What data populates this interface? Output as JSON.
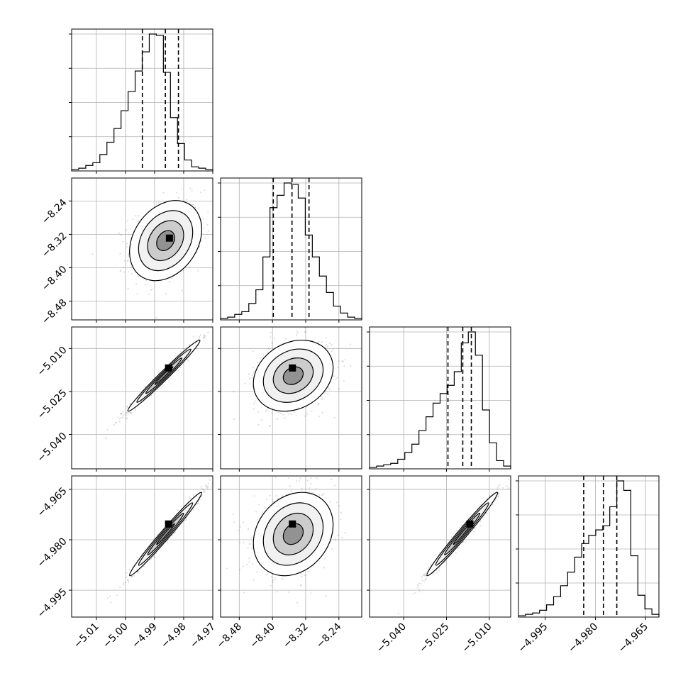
{
  "chart_data": {
    "type": "corner",
    "parameters": [
      {
        "range": [
          -5.0185,
          -4.97
        ],
        "ticks": [
          -5.01,
          -5.0,
          -4.99,
          -4.98,
          -4.97
        ],
        "tick_labels": [
          "−5.01",
          "−5.00",
          "−4.99",
          "−4.98",
          "−4.97"
        ],
        "quantiles": [
          -4.9942,
          -4.9863,
          -4.9818
        ],
        "hist_bins": [
          0.01,
          0.02,
          0.04,
          0.06,
          0.12,
          0.21,
          0.31,
          0.44,
          0.58,
          0.73,
          0.87,
          1.0,
          0.99,
          0.72,
          0.39,
          0.2,
          0.08,
          0.03,
          0.02,
          0.01
        ]
      },
      {
        "range": [
          -8.525,
          -8.185
        ],
        "ticks": [
          -8.48,
          -8.4,
          -8.32,
          -8.24
        ],
        "tick_labels": [
          "−8.48",
          "−8.40",
          "−8.32",
          "−8.24"
        ],
        "quantiles": [
          -8.398,
          -8.353,
          -8.312
        ],
        "hist_bins": [
          0.01,
          0.02,
          0.04,
          0.06,
          0.12,
          0.22,
          0.46,
          0.82,
          0.91,
          1.0,
          0.99,
          0.89,
          0.62,
          0.46,
          0.32,
          0.2,
          0.1,
          0.05,
          0.02,
          0.01
        ]
      },
      {
        "range": [
          -5.052,
          -5.0025
        ],
        "ticks": [
          -5.04,
          -5.025,
          -5.01
        ],
        "tick_labels": [
          "−5.040",
          "−5.025",
          "−5.010"
        ],
        "quantiles": [
          -5.0245,
          -5.0193,
          -5.0163
        ],
        "hist_bins": [
          0.01,
          0.02,
          0.03,
          0.04,
          0.07,
          0.12,
          0.18,
          0.28,
          0.38,
          0.48,
          0.55,
          0.61,
          0.71,
          0.92,
          1.0,
          0.83,
          0.43,
          0.19,
          0.06,
          0.02
        ]
      },
      {
        "range": [
          -5.003,
          -4.961
        ],
        "ticks": [
          -4.995,
          -4.98,
          -4.965
        ],
        "tick_labels": [
          "−4.995",
          "−4.980",
          "−4.965"
        ],
        "quantiles": [
          -4.9835,
          -4.9776,
          -4.9736
        ],
        "hist_bins": [
          0.01,
          0.02,
          0.03,
          0.05,
          0.09,
          0.15,
          0.23,
          0.33,
          0.44,
          0.54,
          0.6,
          0.64,
          0.67,
          0.81,
          1.0,
          0.93,
          0.45,
          0.16,
          0.06,
          0.02
        ]
      }
    ],
    "pairs": [
      {
        "row": 1,
        "col": 0,
        "center": [
          -4.9862,
          -8.335
        ],
        "sd": [
          0.0062,
          0.048
        ],
        "rho": 0.28,
        "peak": [
          -4.9849,
          -8.329
        ]
      },
      {
        "row": 2,
        "col": 0,
        "center": [
          -4.9868,
          -5.0195
        ],
        "sd": [
          0.0062,
          0.0062
        ],
        "rho": 0.985,
        "peak": [
          -4.9852,
          -5.0168
        ]
      },
      {
        "row": 2,
        "col": 1,
        "center": [
          -8.35,
          -5.0195
        ],
        "sd": [
          0.048,
          0.0062
        ],
        "rho": 0.22,
        "peak": [
          -8.352,
          -5.0168
        ]
      },
      {
        "row": 3,
        "col": 0,
        "center": [
          -4.9862,
          -4.9783
        ],
        "sd": [
          0.0062,
          0.0062
        ],
        "rho": 0.985,
        "peak": [
          -4.9852,
          -4.9753
        ]
      },
      {
        "row": 3,
        "col": 1,
        "center": [
          -8.35,
          -4.9783
        ],
        "sd": [
          0.048,
          0.0062
        ],
        "rho": 0.22,
        "peak": [
          -8.352,
          -4.9753
        ]
      },
      {
        "row": 3,
        "col": 2,
        "center": [
          -5.0195,
          -4.9783
        ],
        "sd": [
          0.0062,
          0.0062
        ],
        "rho": 0.985,
        "peak": [
          -5.0168,
          -4.9753
        ]
      }
    ],
    "contour_levels_sigma": [
      0.5,
      1.0,
      1.5,
      2.0
    ],
    "grid": true,
    "quantile_line_style": "dashed"
  }
}
